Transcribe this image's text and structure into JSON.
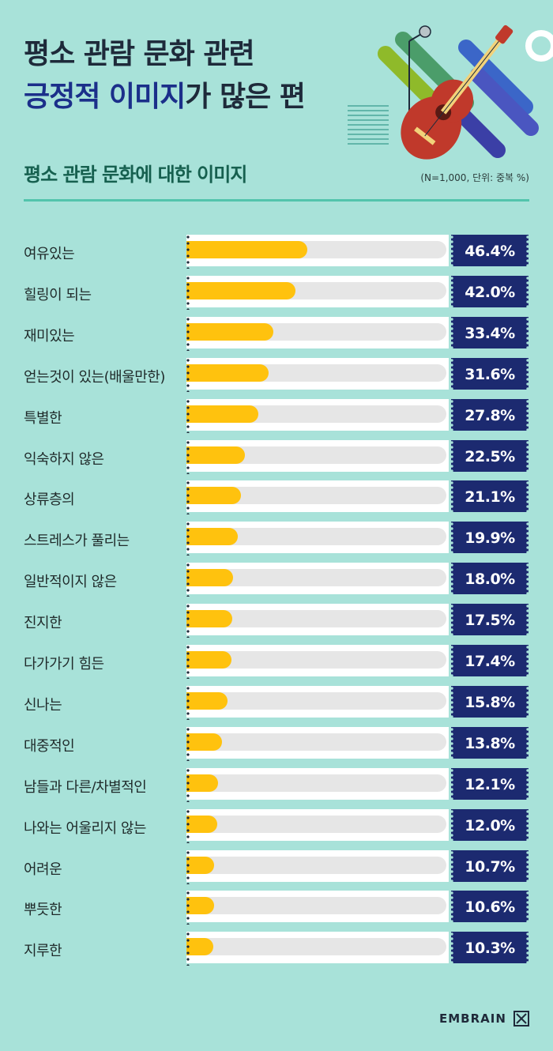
{
  "header": {
    "title_line1": "평소 관람 문화 관련",
    "title_hl_a": "긍정적",
    "title_hl_b": "이미지",
    "title_rest": "가 많은 편",
    "subtitle": "평소 관람 문화에 대한 이미지",
    "note": "(N=1,000, 단위: 중복 %)"
  },
  "brand": "EMBRAIN",
  "colors": {
    "background": "#a8e2d9",
    "bar_fill": "#ffc20e",
    "bar_track": "#e6e6e6",
    "value_ticket": "#1c2a70",
    "title_highlight": "#1b2f8a",
    "subtitle": "#16604f"
  },
  "chart_data": {
    "type": "bar",
    "orientation": "horizontal",
    "categories": [
      "여유있는",
      "힐링이 되는",
      "재미있는",
      "얻는것이 있는(배울만한)",
      "특별한",
      "익숙하지 않은",
      "상류층의",
      "스트레스가 풀리는",
      "일반적이지 않은",
      "진지한",
      "다가가기 힘든",
      "신나는",
      "대중적인",
      "남들과 다른/차별적인",
      "나와는 어울리지 않는",
      "어려운",
      "뿌듯한",
      "지루한"
    ],
    "values": [
      46.4,
      42.0,
      33.4,
      31.6,
      27.8,
      22.5,
      21.1,
      19.9,
      18.0,
      17.5,
      17.4,
      15.8,
      13.8,
      12.1,
      12.0,
      10.7,
      10.6,
      10.3
    ],
    "value_labels": [
      "46.4%",
      "42.0%",
      "33.4%",
      "31.6%",
      "27.8%",
      "22.5%",
      "21.1%",
      "19.9%",
      "18.0%",
      "17.5%",
      "17.4%",
      "15.8%",
      "13.8%",
      "12.1%",
      "12.0%",
      "10.7%",
      "10.6%",
      "10.3%"
    ],
    "xlim": [
      0,
      100
    ]
  }
}
